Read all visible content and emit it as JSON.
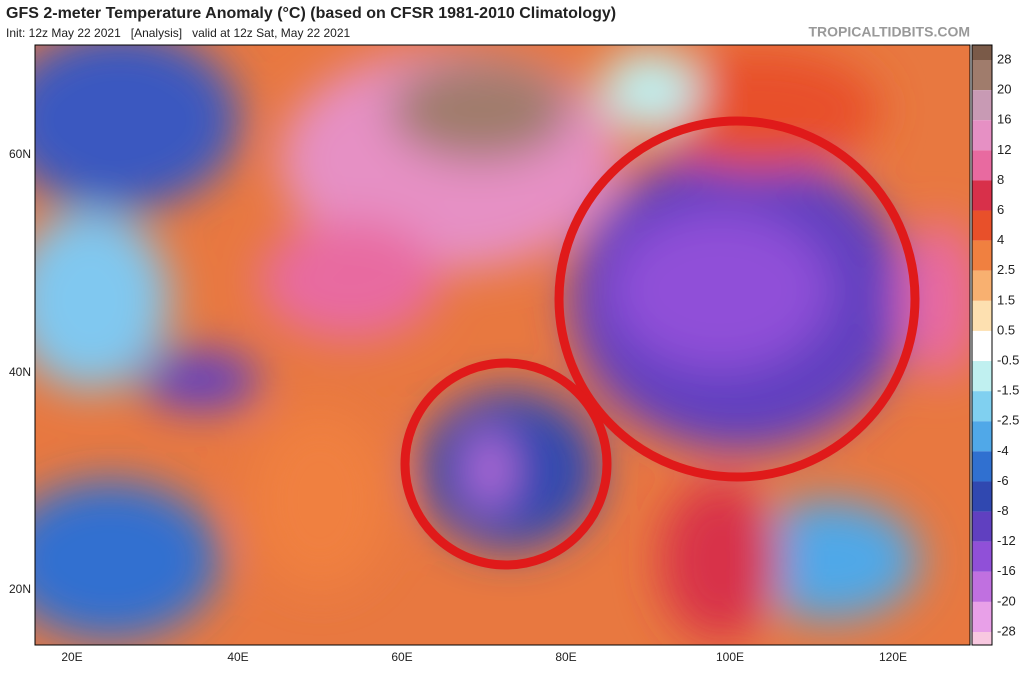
{
  "header": {
    "title": "GFS 2-meter Temperature Anomaly (°C) (based on CFSR 1981-2010 Climatology)",
    "subtitle": "Init: 12z May 22 2021   [Analysis]   valid at 12z Sat, May 22 2021",
    "site": "TROPICALTIDBITS.COM"
  },
  "map": {
    "lat_labels": [
      "60N",
      "40N",
      "20N"
    ],
    "lon_labels": [
      "20E",
      "40E",
      "60E",
      "80E",
      "100E",
      "120E"
    ]
  },
  "colorbar": {
    "labels": [
      "28",
      "20",
      "16",
      "12",
      "8",
      "6",
      "4",
      "2.5",
      "1.5",
      "0.5",
      "-0.5",
      "-1.5",
      "-2.5",
      "-4",
      "-6",
      "-8",
      "-12",
      "-16",
      "-20",
      "-28"
    ],
    "colors": [
      "#7a5a48",
      "#a07c6c",
      "#c89ab4",
      "#e690c4",
      "#e86aa0",
      "#d8304a",
      "#e8502a",
      "#f08040",
      "#f8b070",
      "#fde0b0",
      "#ffffff",
      "#c0f0f0",
      "#80d0f0",
      "#50a8e8",
      "#3070d0",
      "#3048b0",
      "#6040c0",
      "#9050d8",
      "#c070e0",
      "#e8a0e8",
      "#f8c8e0"
    ]
  }
}
